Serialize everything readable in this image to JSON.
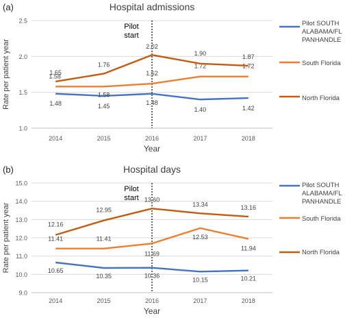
{
  "chart_data": [
    {
      "type": "line",
      "panel_label": "(a)",
      "title": "Hospital admissions",
      "xlabel": "Year",
      "ylabel": "Rate per patient year",
      "x": [
        "2014",
        "2015",
        "2016",
        "2017",
        "2018"
      ],
      "ylim": [
        1.0,
        2.5
      ],
      "yticks": [
        "1.0",
        "1.5",
        "2.0",
        "2.5"
      ],
      "grid": "horizontal",
      "legend_position": "right",
      "annotation": {
        "text": "Pilot\nstart",
        "x": "2016",
        "style": "dotted vertical line"
      },
      "series": [
        {
          "name": "Pilot SOUTH\nALABAMA/FL\nPANHANDLE",
          "color": "#4472C4",
          "values": [
            1.48,
            1.45,
            1.48,
            1.4,
            1.42
          ],
          "labels": [
            "1.48",
            "1.45",
            "1.48",
            "1.40",
            "1.42"
          ]
        },
        {
          "name": "South Florida",
          "color": "#ED7D31",
          "values": [
            1.58,
            1.58,
            1.62,
            1.72,
            1.72
          ],
          "labels": [
            "1.58",
            "1.58",
            "1.62",
            "1.72",
            "1.72"
          ]
        },
        {
          "name": "North Florida",
          "color": "#C55A11",
          "values": [
            1.65,
            1.76,
            2.02,
            1.9,
            1.87
          ],
          "labels": [
            "1.65",
            "1.76",
            "2.02",
            "1.90",
            "1.87"
          ]
        }
      ]
    },
    {
      "type": "line",
      "panel_label": "(b)",
      "title": "Hospital days",
      "xlabel": "Year",
      "ylabel": "Rate per patient year",
      "x": [
        "2014",
        "2015",
        "2016",
        "2017",
        "2018"
      ],
      "ylim": [
        9.0,
        15.0
      ],
      "yticks": [
        "9.0",
        "10.0",
        "11.0",
        "12.0",
        "13.0",
        "14.0",
        "15.0"
      ],
      "grid": "horizontal",
      "legend_position": "right",
      "annotation": {
        "text": "Pilot\nstart",
        "x": "2016",
        "style": "dotted vertical line"
      },
      "series": [
        {
          "name": "Pilot SOUTH\nALABAMA/FL\nPANHANDLE",
          "color": "#4472C4",
          "values": [
            10.65,
            10.35,
            10.36,
            10.15,
            10.21
          ],
          "labels": [
            "10.65",
            "10.35",
            "10.36",
            "10.15",
            "10.21"
          ]
        },
        {
          "name": "South Florida",
          "color": "#ED7D31",
          "values": [
            11.41,
            11.41,
            11.69,
            12.53,
            11.94
          ],
          "labels": [
            "11.41",
            "11.41",
            "11.69",
            "12.53",
            "11.94"
          ]
        },
        {
          "name": "North Florida",
          "color": "#C55A11",
          "values": [
            12.16,
            12.95,
            13.6,
            13.34,
            13.16
          ],
          "labels": [
            "12.16",
            "12.95",
            "13.60",
            "13.34",
            "13.16"
          ]
        }
      ]
    }
  ]
}
